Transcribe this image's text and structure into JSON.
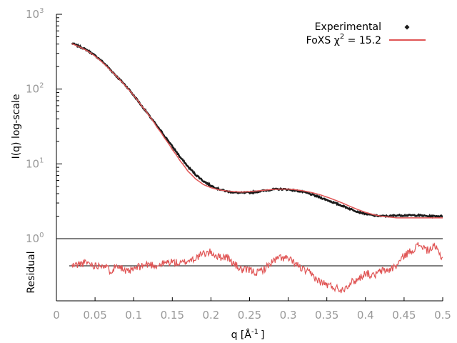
{
  "chart_data": {
    "type": "line",
    "ylabel": "I(q) log-scale",
    "residual_label": "Residual",
    "xlabel": "q [Å",
    "xlabel_exp": "-1",
    "xlabel_close": "]",
    "x_ticks": [
      "0",
      "0.05",
      "0.1",
      "0.15",
      "0.2",
      "0.25",
      "0.3",
      "0.35",
      "0.4",
      "0.45",
      "0.5"
    ],
    "y_ticks": [
      {
        "base": "10",
        "exp": "0",
        "value": 1
      },
      {
        "base": "10",
        "exp": "1",
        "value": 10
      },
      {
        "base": "10",
        "exp": "2",
        "value": 100
      },
      {
        "base": "10",
        "exp": "3",
        "value": 1000
      }
    ],
    "xlim": [
      0,
      0.5
    ],
    "ylim": [
      1,
      1000
    ],
    "yscale": "log",
    "legend_position": "top-right",
    "legend": {
      "experimental": "Experimental",
      "fit_prefix": "FoXS χ",
      "fit_exp": "2",
      "fit_suffix": " = 15.2"
    },
    "colors": {
      "experimental": "#1a1a1a",
      "fit": "#e05555",
      "axis": "#000000",
      "tick_label": "#999999"
    },
    "series": [
      {
        "name": "Experimental",
        "x": [
          0.02,
          0.03,
          0.04,
          0.05,
          0.06,
          0.07,
          0.08,
          0.09,
          0.1,
          0.11,
          0.12,
          0.13,
          0.14,
          0.15,
          0.16,
          0.17,
          0.18,
          0.19,
          0.2,
          0.21,
          0.22,
          0.23,
          0.24,
          0.25,
          0.26,
          0.27,
          0.28,
          0.29,
          0.3,
          0.31,
          0.32,
          0.33,
          0.34,
          0.35,
          0.36,
          0.37,
          0.38,
          0.39,
          0.4,
          0.41,
          0.42,
          0.43,
          0.44,
          0.45,
          0.46,
          0.47,
          0.48,
          0.49,
          0.5
        ],
        "y": [
          410,
          370,
          330,
          280,
          230,
          180,
          140,
          110,
          82,
          60,
          44,
          32,
          23.5,
          17,
          12.3,
          9.2,
          7.2,
          5.9,
          5.1,
          4.6,
          4.3,
          4.15,
          4.1,
          4.15,
          4.25,
          4.4,
          4.55,
          4.6,
          4.55,
          4.4,
          4.2,
          3.9,
          3.6,
          3.3,
          3.0,
          2.75,
          2.5,
          2.3,
          2.15,
          2.05,
          2.0,
          2.0,
          2.05,
          2.05,
          2.05,
          2.05,
          2.0,
          2.0,
          2.0
        ]
      },
      {
        "name": "FoXS χ2 = 15.2",
        "x": [
          0.02,
          0.03,
          0.04,
          0.05,
          0.06,
          0.07,
          0.08,
          0.09,
          0.1,
          0.11,
          0.12,
          0.13,
          0.14,
          0.15,
          0.16,
          0.17,
          0.18,
          0.19,
          0.2,
          0.21,
          0.22,
          0.23,
          0.24,
          0.25,
          0.26,
          0.27,
          0.28,
          0.29,
          0.3,
          0.31,
          0.32,
          0.33,
          0.34,
          0.35,
          0.36,
          0.37,
          0.38,
          0.39,
          0.4,
          0.41,
          0.42,
          0.43,
          0.44,
          0.45,
          0.46,
          0.47,
          0.48,
          0.49,
          0.5
        ],
        "y": [
          405,
          365,
          325,
          275,
          225,
          178,
          140,
          108,
          82,
          60,
          44,
          31,
          22,
          15.5,
          11,
          8,
          6.3,
          5.3,
          4.8,
          4.5,
          4.35,
          4.25,
          4.2,
          4.25,
          4.35,
          4.45,
          4.55,
          4.6,
          4.6,
          4.5,
          4.35,
          4.15,
          3.9,
          3.6,
          3.3,
          3.0,
          2.7,
          2.45,
          2.25,
          2.1,
          2.0,
          1.95,
          1.9,
          1.9,
          1.9,
          1.9,
          1.9,
          1.9,
          1.9
        ]
      }
    ],
    "residual": {
      "x": [
        0.02,
        0.03,
        0.04,
        0.05,
        0.06,
        0.07,
        0.08,
        0.09,
        0.1,
        0.11,
        0.12,
        0.13,
        0.14,
        0.15,
        0.16,
        0.17,
        0.18,
        0.19,
        0.2,
        0.21,
        0.22,
        0.23,
        0.24,
        0.25,
        0.26,
        0.27,
        0.28,
        0.29,
        0.3,
        0.31,
        0.32,
        0.33,
        0.34,
        0.35,
        0.36,
        0.37,
        0.38,
        0.39,
        0.4,
        0.41,
        0.42,
        0.43,
        0.44,
        0.45,
        0.46,
        0.47,
        0.48,
        0.49,
        0.5
      ],
      "y": [
        0.0,
        0.02,
        0.04,
        0.0,
        0.02,
        -0.06,
        0.02,
        -0.08,
        -0.04,
        0.0,
        0.02,
        0.0,
        0.03,
        0.05,
        0.02,
        0.06,
        0.09,
        0.14,
        0.16,
        0.1,
        0.11,
        0.02,
        -0.05,
        -0.05,
        -0.08,
        -0.03,
        0.05,
        0.1,
        0.08,
        0.02,
        -0.05,
        -0.1,
        -0.18,
        -0.22,
        -0.25,
        -0.28,
        -0.2,
        -0.16,
        -0.08,
        -0.12,
        -0.06,
        -0.05,
        0.0,
        0.12,
        0.18,
        0.25,
        0.18,
        0.22,
        0.08
      ],
      "ylim": [
        -0.4,
        0.4
      ]
    }
  }
}
